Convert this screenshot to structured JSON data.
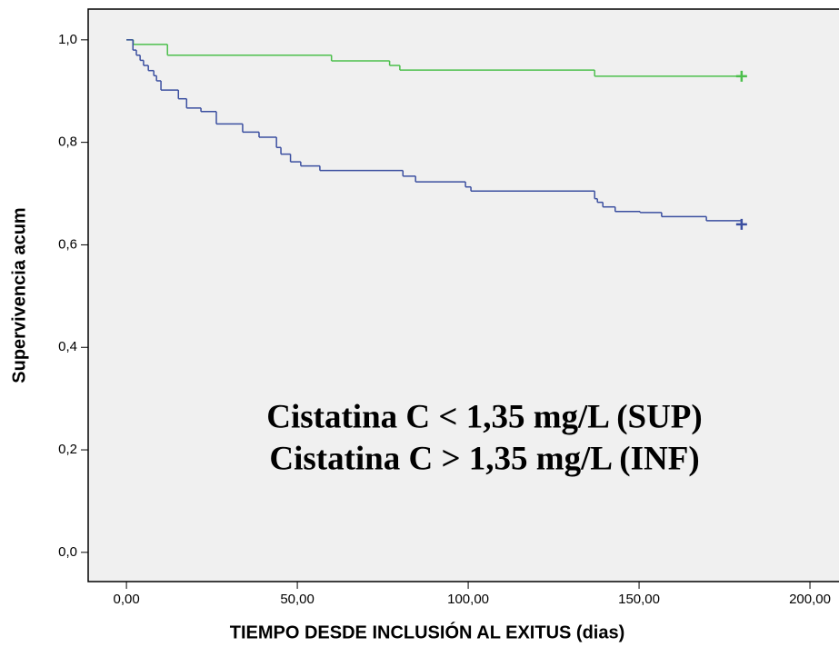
{
  "chart_data": {
    "type": "step",
    "xlabel": "TIEMPO DESDE INCLUSIÓN AL EXITUS (dias)",
    "ylabel": "Supervivencia acum",
    "xlim": [
      -11.2,
      208.5
    ],
    "ylim": [
      -0.057,
      1.06
    ],
    "xticks": [
      {
        "value": 0,
        "label": "0,00"
      },
      {
        "value": 50,
        "label": "50,00"
      },
      {
        "value": 100,
        "label": "100,00"
      },
      {
        "value": 150,
        "label": "150,00"
      },
      {
        "value": 200,
        "label": "200,00"
      }
    ],
    "yticks": [
      {
        "value": 0,
        "label": "0,0"
      },
      {
        "value": 0.2,
        "label": "0,2"
      },
      {
        "value": 0.4,
        "label": "0,4"
      },
      {
        "value": 0.6,
        "label": "0,6"
      },
      {
        "value": 0.8,
        "label": "0,8"
      },
      {
        "value": 1.0,
        "label": "1,0"
      }
    ],
    "annotations": [
      {
        "text": "Cistatina C < 1,35 mg/L (SUP)",
        "color": "#566b2e"
      },
      {
        "text": "Cistatina C > 1,35 mg/L (INF)",
        "color": "#3a78c0"
      }
    ],
    "series": [
      {
        "color": "#4cbf4c",
        "x": [
          0,
          2,
          12,
          60,
          77,
          80,
          137,
          180
        ],
        "values": [
          1.0,
          0.991,
          0.97,
          0.959,
          0.95,
          0.941,
          0.929,
          0.929
        ]
      },
      {
        "color": "#3b4fa0",
        "x": [
          0,
          1.9,
          2.9,
          4,
          5,
          6.4,
          8,
          8.8,
          10.1,
          15.2,
          17.6,
          21.8,
          26.3,
          34,
          38.8,
          43.9,
          45.2,
          48,
          51,
          56.6,
          80.9,
          84.6,
          99.2,
          100.8,
          137,
          137.8,
          139.4,
          143,
          150.3,
          156.6,
          169.7,
          180
        ],
        "values": [
          1.0,
          0.98,
          0.97,
          0.96,
          0.95,
          0.94,
          0.93,
          0.92,
          0.902,
          0.885,
          0.867,
          0.86,
          0.836,
          0.82,
          0.81,
          0.79,
          0.777,
          0.762,
          0.754,
          0.745,
          0.734,
          0.723,
          0.713,
          0.705,
          0.69,
          0.683,
          0.674,
          0.665,
          0.663,
          0.655,
          0.647,
          0.64
        ]
      }
    ]
  }
}
